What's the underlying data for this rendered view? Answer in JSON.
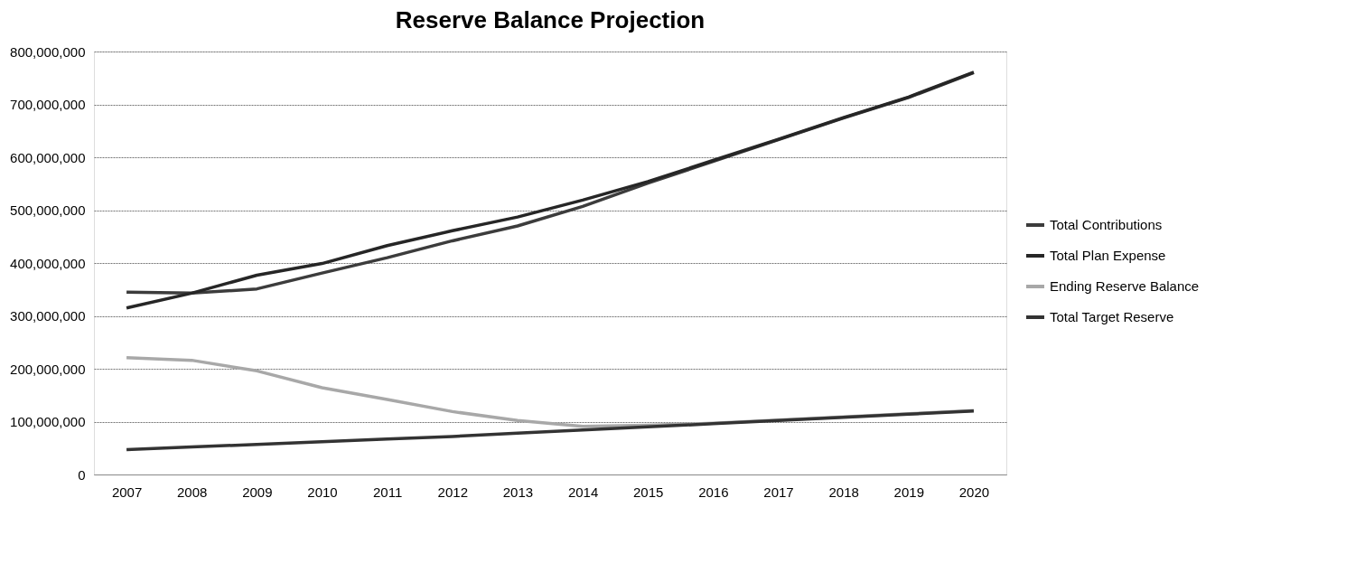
{
  "chart_data": {
    "type": "line",
    "title": "Reserve Balance Projection",
    "categories": [
      "2007",
      "2008",
      "2009",
      "2010",
      "2011",
      "2012",
      "2013",
      "2014",
      "2015",
      "2016",
      "2017",
      "2018",
      "2019",
      "2020"
    ],
    "series": [
      {
        "name": "Total Contributions",
        "color": "#3c3c3c",
        "values": [
          345000000,
          343000000,
          351000000,
          381000000,
          410000000,
          442000000,
          470000000,
          507000000,
          551000000,
          592000000,
          633000000,
          674000000,
          713000000,
          760000000
        ]
      },
      {
        "name": "Total Plan Expense",
        "color": "#262626",
        "values": [
          315000000,
          343000000,
          377000000,
          399000000,
          433000000,
          461000000,
          487000000,
          519000000,
          554000000,
          594000000,
          634000000,
          675000000,
          714000000,
          761000000
        ]
      },
      {
        "name": "Ending Reserve Balance",
        "color": "#a8a8a8",
        "values": [
          221000000,
          216000000,
          196000000,
          164000000,
          142000000,
          119000000,
          102000000,
          91000000,
          93000000,
          97000000,
          103000000,
          109000000,
          115000000,
          121000000
        ]
      },
      {
        "name": "Total Target Reserve",
        "color": "#333333",
        "values": [
          47000000,
          52000000,
          57000000,
          62000000,
          67000000,
          72000000,
          78000000,
          84000000,
          90000000,
          96000000,
          102000000,
          108000000,
          114000000,
          120000000
        ]
      }
    ],
    "ylim": [
      0,
      800000000
    ],
    "yticks": [
      0,
      {
        "value": 100000000,
        "label": "100,000,000"
      },
      {
        "value": 200000000,
        "label": "200,000,000"
      },
      {
        "value": 300000000,
        "label": "300,000,000"
      },
      {
        "value": 400000000,
        "label": "400,000,000"
      },
      {
        "value": 500000000,
        "label": "500,000,000"
      },
      {
        "value": 600000000,
        "label": "600,000,000"
      },
      {
        "value": 700000000,
        "label": "700,000,000"
      },
      {
        "value": 800000000,
        "label": "800,000,000"
      }
    ],
    "grid": "y",
    "legend": "right",
    "marker": "none",
    "line_style": "solid"
  }
}
